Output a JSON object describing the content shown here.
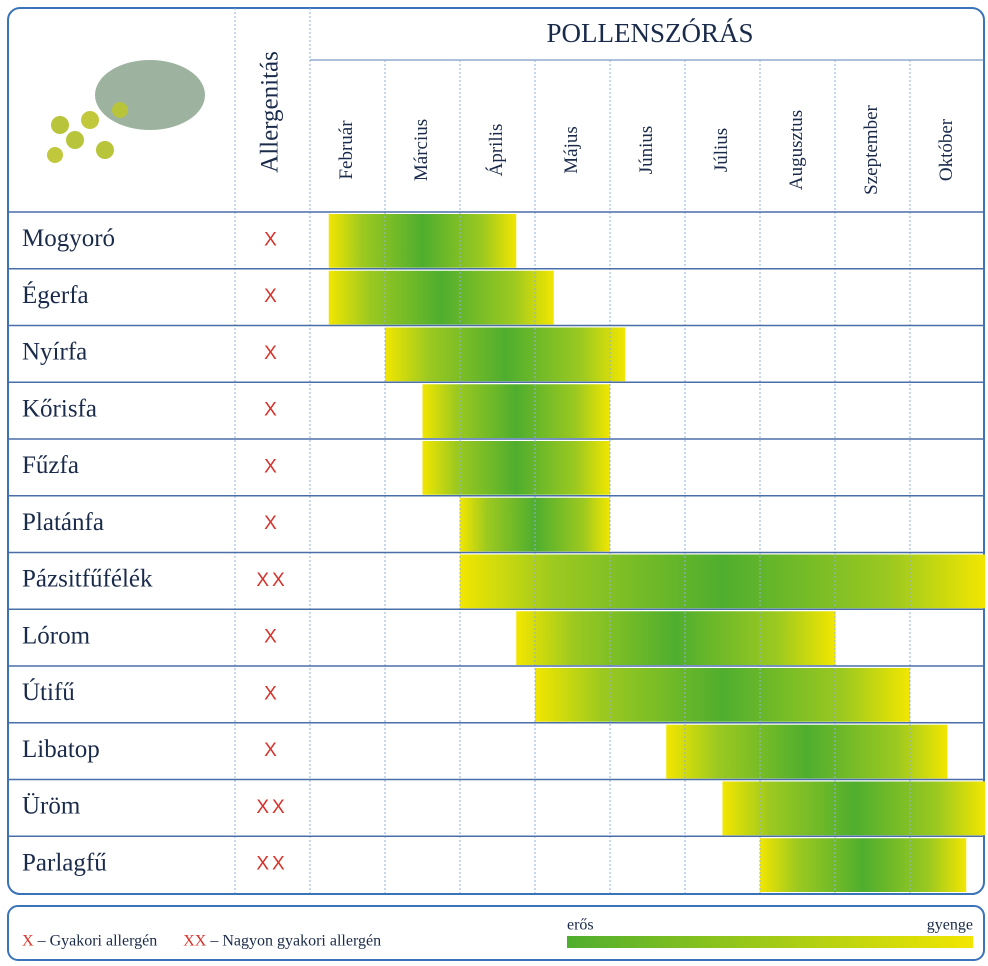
{
  "header": {
    "title": "POLLENSZÓRÁS",
    "allergenity": "Allergenitás"
  },
  "months": [
    "Február",
    "Március",
    "Április",
    "Május",
    "Június",
    "Július",
    "Augusztus",
    "Szeptember",
    "Október"
  ],
  "rows": [
    {
      "name": "Mogyoró",
      "allergen": "X",
      "start": 0.25,
      "end": 2.75
    },
    {
      "name": "Égerfa",
      "allergen": "X",
      "start": 0.25,
      "end": 3.25
    },
    {
      "name": "Nyírfa",
      "allergen": "X",
      "start": 1.0,
      "end": 4.2
    },
    {
      "name": "Kőrisfa",
      "allergen": "X",
      "start": 1.5,
      "end": 4.0
    },
    {
      "name": "Fűzfa",
      "allergen": "X",
      "start": 1.5,
      "end": 4.0
    },
    {
      "name": "Platánfa",
      "allergen": "X",
      "start": 2.0,
      "end": 4.0
    },
    {
      "name": "Pázsitfűfélék",
      "allergen": "XX",
      "start": 2.0,
      "end": 9.0
    },
    {
      "name": "Lórom",
      "allergen": "X",
      "start": 2.75,
      "end": 7.0
    },
    {
      "name": "Útifű",
      "allergen": "X",
      "start": 3.0,
      "end": 8.0
    },
    {
      "name": "Libatop",
      "allergen": "X",
      "start": 4.75,
      "end": 8.5
    },
    {
      "name": "Üröm",
      "allergen": "XX",
      "start": 5.5,
      "end": 9.0
    },
    {
      "name": "Parlagfű",
      "allergen": "XX",
      "start": 6.0,
      "end": 8.75
    }
  ],
  "legend": {
    "items": [
      {
        "mark": "X",
        "label": "– Gyakori allergén"
      },
      {
        "mark": "XX",
        "label": "– Nagyon gyakori allergén"
      }
    ],
    "strong": "erős",
    "weak": "gyenge"
  }
}
